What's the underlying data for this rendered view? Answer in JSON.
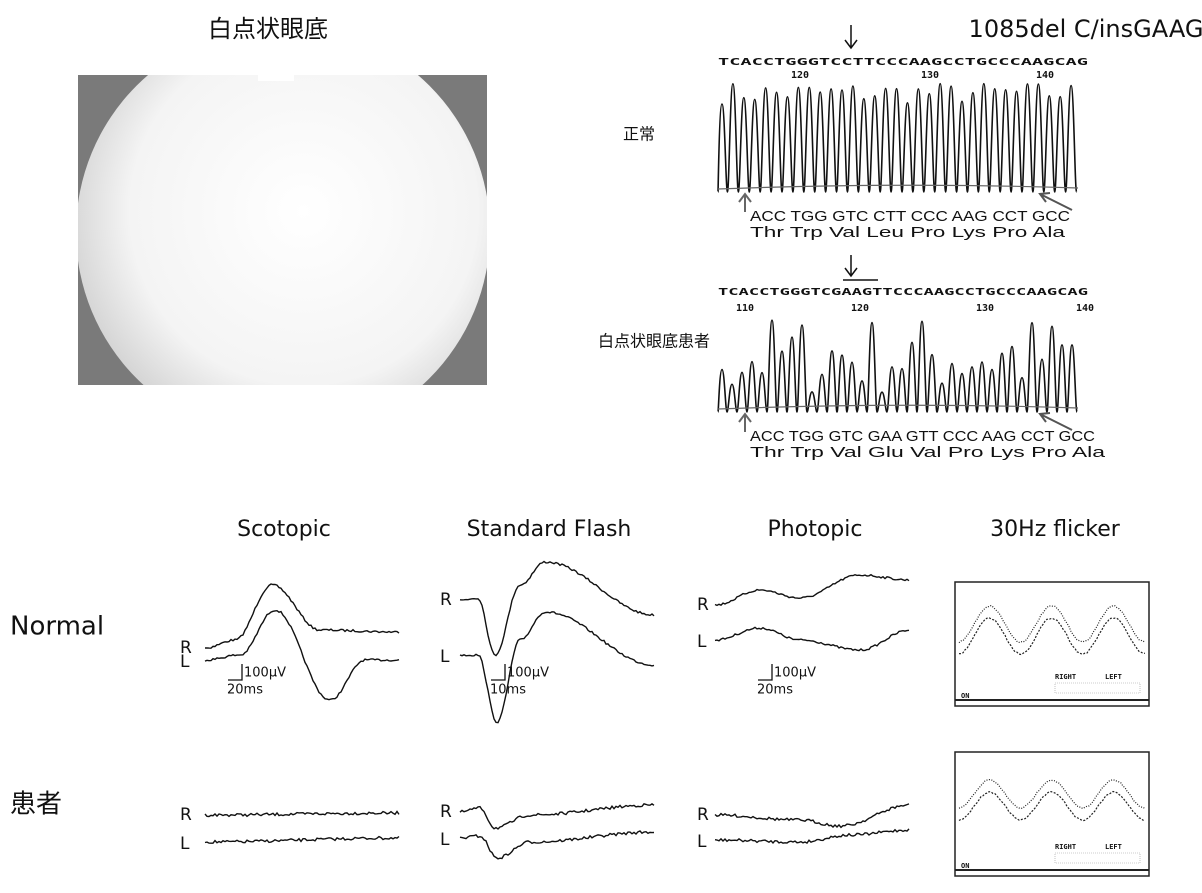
{
  "fundus": {
    "title": "白点状眼底"
  },
  "sequencing": {
    "title": "1085del C/insGAAG",
    "panels": [
      {
        "label": "正常",
        "sequence": "TCACCTGGGTCCTTCCCAAGCCTGCCCAAGCAG",
        "positions": [
          "120",
          "130",
          "140"
        ],
        "codons": "ACC TGG GTC CTT CCC AAG CCT GCC",
        "amino_acids": "Thr Trp Val Leu Pro Lys Pro Ala"
      },
      {
        "label": "白点状眼底患者",
        "sequence": "TCACCTGGGTCGAAGTTCCCAAGCCTGCCCAAGCAG",
        "positions": [
          "110",
          "120",
          "130",
          "140"
        ],
        "codons": "ACC TGG GTC GAA GTT CCC AAG CCT GCC",
        "amino_acids": "Thr Trp Val Glu Val Pro Lys Pro Ala"
      }
    ]
  },
  "erg": {
    "columns": [
      "Scotopic",
      "Standard Flash",
      "Photopic",
      "30Hz flicker"
    ],
    "rows": [
      "Normal",
      "患者"
    ],
    "trace_labels": [
      "R",
      "L"
    ],
    "scale_bars": [
      {
        "amplitude": "100μV",
        "time": "20ms"
      },
      {
        "amplitude": "100μV",
        "time": "10ms"
      },
      {
        "amplitude": "100μV",
        "time": "20ms"
      }
    ],
    "flicker_readout": {
      "right": "RIGHT",
      "left": "LEFT",
      "on": "ON"
    }
  }
}
